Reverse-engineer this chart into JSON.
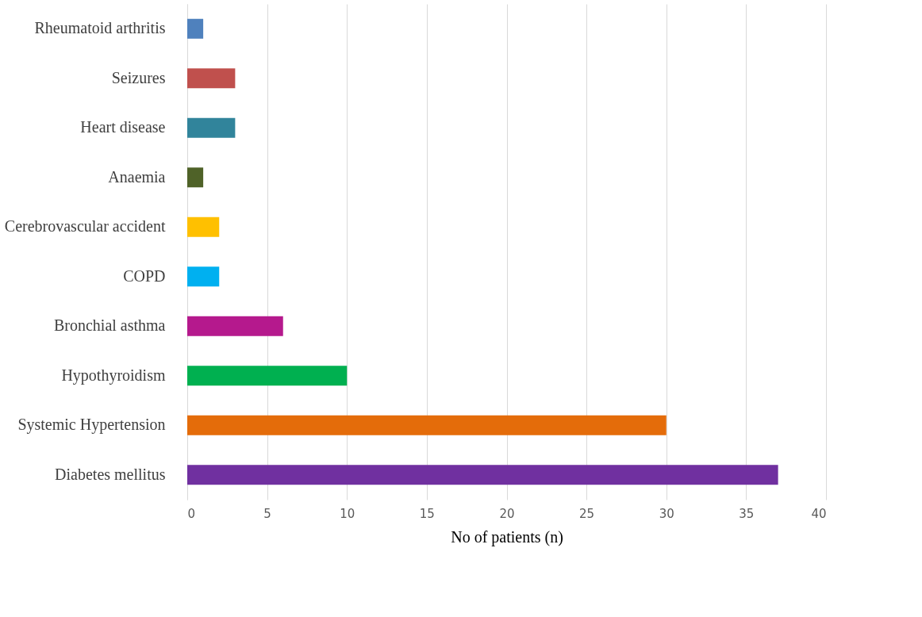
{
  "chart_data": {
    "type": "bar",
    "orientation": "horizontal",
    "xlabel": "No of patients (n)",
    "categories": [
      "Rheumatoid arthritis",
      "Seizures",
      "Heart disease",
      "Anaemia",
      "Cerebrovascular accident",
      "COPD",
      "Bronchial asthma",
      "Hypothyroidism",
      "Systemic Hypertension",
      "Diabetes mellitus"
    ],
    "values": [
      1,
      3,
      3,
      1,
      2,
      2,
      6,
      10,
      30,
      37
    ],
    "colors": [
      "#4f81bd",
      "#c0504d",
      "#31849b",
      "#4f6228",
      "#ffc000",
      "#00b0f0",
      "#b5198d",
      "#00b050",
      "#e46c0a",
      "#7030a0"
    ],
    "xlim": [
      0,
      40
    ],
    "xticks": [
      0,
      5,
      10,
      15,
      20,
      25,
      30,
      35,
      40
    ],
    "grid": "x",
    "legend": false
  }
}
